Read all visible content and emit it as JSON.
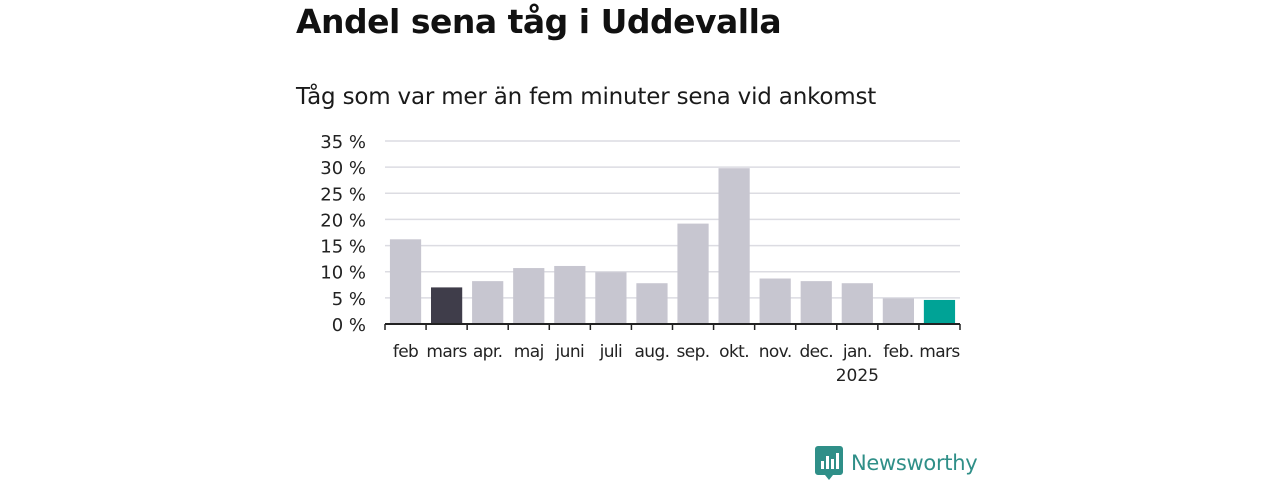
{
  "title": "Andel sena tåg i Uddevalla",
  "subtitle": "Tåg som var mer än fem minuter sena vid ankomst",
  "brand": "Newsworthy",
  "colors": {
    "bar_default": "#c7c6d0",
    "bar_highlight_prev": "#3f3d4a",
    "bar_highlight_current": "#00a396",
    "grid": "#dcdce2",
    "axis": "#222222",
    "brand": "#2f8f88"
  },
  "chart_data": {
    "type": "bar",
    "categories": [
      "feb",
      "mars",
      "apr.",
      "maj",
      "juni",
      "juli",
      "aug.",
      "sep.",
      "okt.",
      "nov.",
      "dec.",
      "jan.",
      "feb.",
      "mars"
    ],
    "values": [
      16.2,
      7.0,
      8.2,
      10.7,
      11.1,
      9.9,
      7.8,
      19.2,
      29.8,
      8.7,
      8.2,
      7.8,
      4.9,
      4.6
    ],
    "highlight": [
      "none",
      "previous",
      "none",
      "none",
      "none",
      "none",
      "none",
      "none",
      "none",
      "none",
      "none",
      "none",
      "none",
      "current"
    ],
    "year_label": "2025",
    "y_tick_labels": [
      "0 %",
      "5 %",
      "10 %",
      "15 %",
      "20 %",
      "25 %",
      "30 %",
      "35 %"
    ],
    "y_ticks": [
      0,
      5,
      10,
      15,
      20,
      25,
      30,
      35
    ],
    "ylim": [
      0,
      35
    ],
    "grid": true,
    "legend": "none"
  }
}
